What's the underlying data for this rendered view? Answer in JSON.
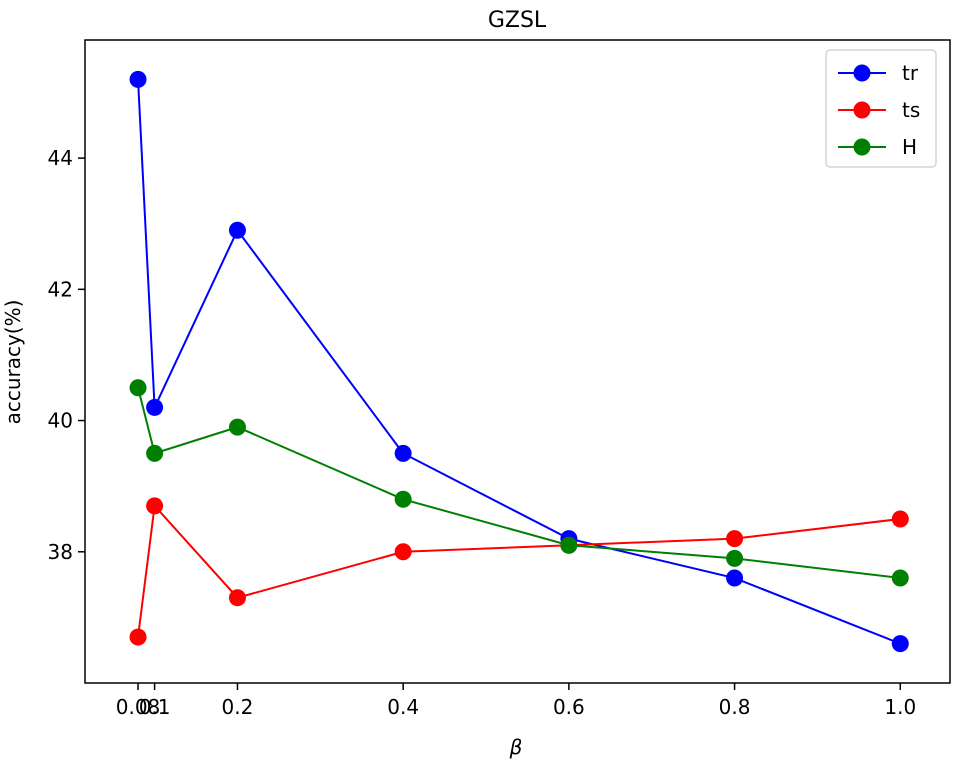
{
  "chart_data": {
    "type": "line",
    "title": "GZSL",
    "xlabel": "β",
    "ylabel": "accuracy(%)",
    "x": [
      0.08,
      0.1,
      0.2,
      0.4,
      0.6,
      0.8,
      1.0
    ],
    "x_tick_labels": [
      "0.08",
      "0.1",
      "0.2",
      "0.4",
      "0.6",
      "0.8",
      "1.0"
    ],
    "y_ticks": [
      38,
      40,
      42,
      44
    ],
    "y_tick_labels": [
      "38",
      "40",
      "42",
      "44"
    ],
    "xlim": [
      0.016,
      1.06
    ],
    "ylim": [
      36.0,
      45.8
    ],
    "grid": false,
    "legend_position": "top-right",
    "series": [
      {
        "name": "tr",
        "color": "#0000ff",
        "values": [
          45.2,
          40.2,
          42.9,
          39.5,
          38.2,
          37.6,
          36.6
        ]
      },
      {
        "name": "ts",
        "color": "#ff0000",
        "values": [
          36.7,
          38.7,
          37.3,
          38.0,
          38.1,
          38.2,
          38.5
        ]
      },
      {
        "name": "H",
        "color": "#008000",
        "values": [
          40.5,
          39.5,
          39.9,
          38.8,
          38.1,
          37.9,
          37.6
        ]
      }
    ]
  }
}
